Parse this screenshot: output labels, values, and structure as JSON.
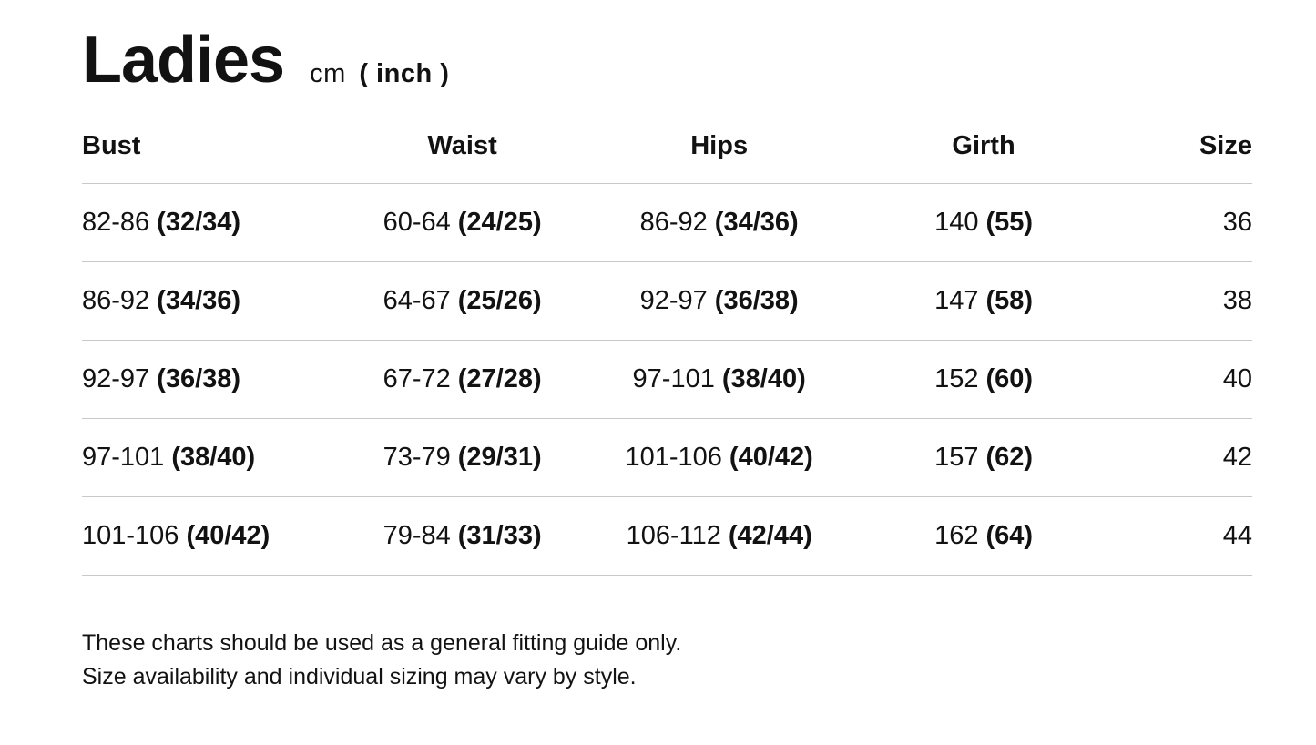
{
  "title": "Ladies",
  "subtitle": {
    "unit": "cm",
    "unit_alt": "( inch )"
  },
  "table": {
    "columns": [
      {
        "label": "Bust",
        "align": "left"
      },
      {
        "label": "Waist",
        "align": "center"
      },
      {
        "label": "Hips",
        "align": "center"
      },
      {
        "label": "Girth",
        "align": "center"
      },
      {
        "label": "Size",
        "align": "right"
      }
    ],
    "rows": [
      {
        "cells": [
          {
            "cm": "82-86",
            "inch": "(32/34)"
          },
          {
            "cm": "60-64",
            "inch": "(24/25)"
          },
          {
            "cm": "86-92",
            "inch": "(34/36)"
          },
          {
            "cm": "140",
            "inch": "(55)"
          },
          {
            "cm": "36",
            "inch": ""
          }
        ]
      },
      {
        "cells": [
          {
            "cm": "86-92",
            "inch": "(34/36)"
          },
          {
            "cm": "64-67",
            "inch": "(25/26)"
          },
          {
            "cm": "92-97",
            "inch": "(36/38)"
          },
          {
            "cm": "147",
            "inch": "(58)"
          },
          {
            "cm": "38",
            "inch": ""
          }
        ]
      },
      {
        "cells": [
          {
            "cm": "92-97",
            "inch": "(36/38)"
          },
          {
            "cm": "67-72",
            "inch": "(27/28)"
          },
          {
            "cm": "97-101",
            "inch": "(38/40)"
          },
          {
            "cm": "152",
            "inch": "(60)"
          },
          {
            "cm": "40",
            "inch": ""
          }
        ]
      },
      {
        "cells": [
          {
            "cm": "97-101",
            "inch": "(38/40)"
          },
          {
            "cm": "73-79",
            "inch": "(29/31)"
          },
          {
            "cm": "101-106",
            "inch": "(40/42)"
          },
          {
            "cm": "157",
            "inch": "(62)"
          },
          {
            "cm": "42",
            "inch": ""
          }
        ]
      },
      {
        "cells": [
          {
            "cm": "101-106",
            "inch": "(40/42)"
          },
          {
            "cm": "79-84",
            "inch": "(31/33)"
          },
          {
            "cm": "106-112",
            "inch": "(42/44)"
          },
          {
            "cm": "162",
            "inch": "(64)"
          },
          {
            "cm": "44",
            "inch": ""
          }
        ]
      }
    ]
  },
  "footer": {
    "line1": "These charts should be used as a general fitting guide only.",
    "line2": "Size availability and individual sizing may vary by style."
  },
  "colors": {
    "text": "#121212",
    "divider": "#c8c8c8",
    "background": "#ffffff"
  }
}
